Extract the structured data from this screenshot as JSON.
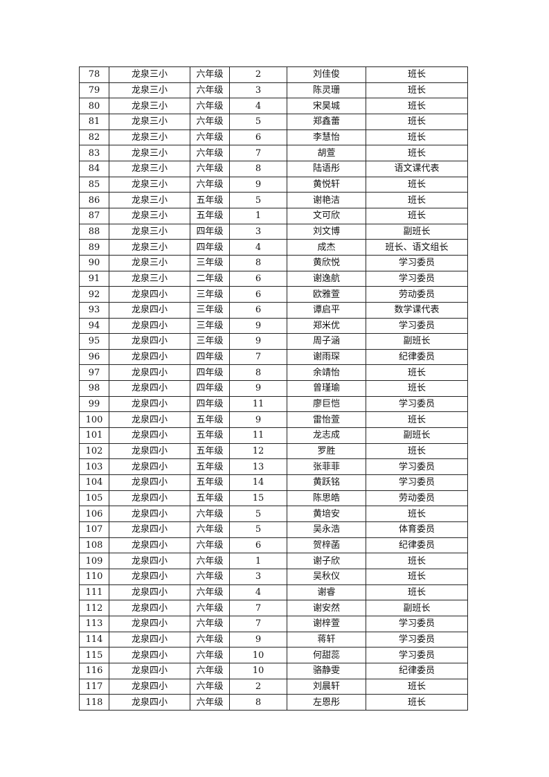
{
  "rows": [
    [
      "78",
      "龙泉三小",
      "六年级",
      "2",
      "刘佳俊",
      "班长"
    ],
    [
      "79",
      "龙泉三小",
      "六年级",
      "3",
      "陈灵珊",
      "班长"
    ],
    [
      "80",
      "龙泉三小",
      "六年级",
      "4",
      "宋昊城",
      "班长"
    ],
    [
      "81",
      "龙泉三小",
      "六年级",
      "5",
      "郑鑫蕾",
      "班长"
    ],
    [
      "82",
      "龙泉三小",
      "六年级",
      "6",
      "李慧怡",
      "班长"
    ],
    [
      "83",
      "龙泉三小",
      "六年级",
      "7",
      "胡萱",
      "班长"
    ],
    [
      "84",
      "龙泉三小",
      "六年级",
      "8",
      "陆语彤",
      "语文课代表"
    ],
    [
      "85",
      "龙泉三小",
      "六年级",
      "9",
      "黄悦轩",
      "班长"
    ],
    [
      "86",
      "龙泉三小",
      "五年级",
      "5",
      "谢艳洁",
      "班长"
    ],
    [
      "87",
      "龙泉三小",
      "五年级",
      "1",
      "文可欣",
      "班长"
    ],
    [
      "88",
      "龙泉三小",
      "四年级",
      "3",
      "刘文博",
      "副班长"
    ],
    [
      "89",
      "龙泉三小",
      "四年级",
      "4",
      "成杰",
      "班长、语文组长"
    ],
    [
      "90",
      "龙泉三小",
      "三年级",
      "8",
      "黄欣悦",
      "学习委员"
    ],
    [
      "91",
      "龙泉三小",
      "二年级",
      "6",
      "谢逸航",
      "学习委员"
    ],
    [
      "92",
      "龙泉四小",
      "三年级",
      "6",
      "欧雅萱",
      "劳动委员"
    ],
    [
      "93",
      "龙泉四小",
      "三年级",
      "6",
      "谭启平",
      "数学课代表"
    ],
    [
      "94",
      "龙泉四小",
      "三年级",
      "9",
      "郑米优",
      "学习委员"
    ],
    [
      "95",
      "龙泉四小",
      "三年级",
      "9",
      "周子涵",
      "副班长"
    ],
    [
      "96",
      "龙泉四小",
      "四年级",
      "7",
      "谢雨琛",
      "纪律委员"
    ],
    [
      "97",
      "龙泉四小",
      "四年级",
      "8",
      "余靖怡",
      "班长"
    ],
    [
      "98",
      "龙泉四小",
      "四年级",
      "9",
      "曾瑾瑜",
      "班长"
    ],
    [
      "99",
      "龙泉四小",
      "四年级",
      "11",
      "廖巨恺",
      "学习委员"
    ],
    [
      "100",
      "龙泉四小",
      "五年级",
      "9",
      "雷怡萱",
      "班长"
    ],
    [
      "101",
      "龙泉四小",
      "五年级",
      "11",
      "龙志成",
      "副班长"
    ],
    [
      "102",
      "龙泉四小",
      "五年级",
      "12",
      "罗胜",
      "班长"
    ],
    [
      "103",
      "龙泉四小",
      "五年级",
      "13",
      "张菲菲",
      "学习委员"
    ],
    [
      "104",
      "龙泉四小",
      "五年级",
      "14",
      "黄跃铭",
      "学习委员"
    ],
    [
      "105",
      "龙泉四小",
      "五年级",
      "15",
      "陈思皓",
      "劳动委员"
    ],
    [
      "106",
      "龙泉四小",
      "六年级",
      "5",
      "黄培安",
      "班长"
    ],
    [
      "107",
      "龙泉四小",
      "六年级",
      "5",
      "吴永浩",
      "体育委员"
    ],
    [
      "108",
      "龙泉四小",
      "六年级",
      "6",
      "贺梓菡",
      "纪律委员"
    ],
    [
      "109",
      "龙泉四小",
      "六年级",
      "1",
      "谢子欣",
      "班长"
    ],
    [
      "110",
      "龙泉四小",
      "六年级",
      "3",
      "吴秋仪",
      "班长"
    ],
    [
      "111",
      "龙泉四小",
      "六年级",
      "4",
      "谢睿",
      "班长"
    ],
    [
      "112",
      "龙泉四小",
      "六年级",
      "7",
      "谢安然",
      "副班长"
    ],
    [
      "113",
      "龙泉四小",
      "六年级",
      "7",
      "谢梓萱",
      "学习委员"
    ],
    [
      "114",
      "龙泉四小",
      "六年级",
      "9",
      "蒋轩",
      "学习委员"
    ],
    [
      "115",
      "龙泉四小",
      "六年级",
      "10",
      "何甜蕊",
      "学习委员"
    ],
    [
      "116",
      "龙泉四小",
      "六年级",
      "10",
      "骆静雯",
      "纪律委员"
    ],
    [
      "117",
      "龙泉四小",
      "六年级",
      "2",
      "刘晨轩",
      "班长"
    ],
    [
      "118",
      "龙泉四小",
      "六年级",
      "8",
      "左恩彤",
      "班长"
    ]
  ]
}
